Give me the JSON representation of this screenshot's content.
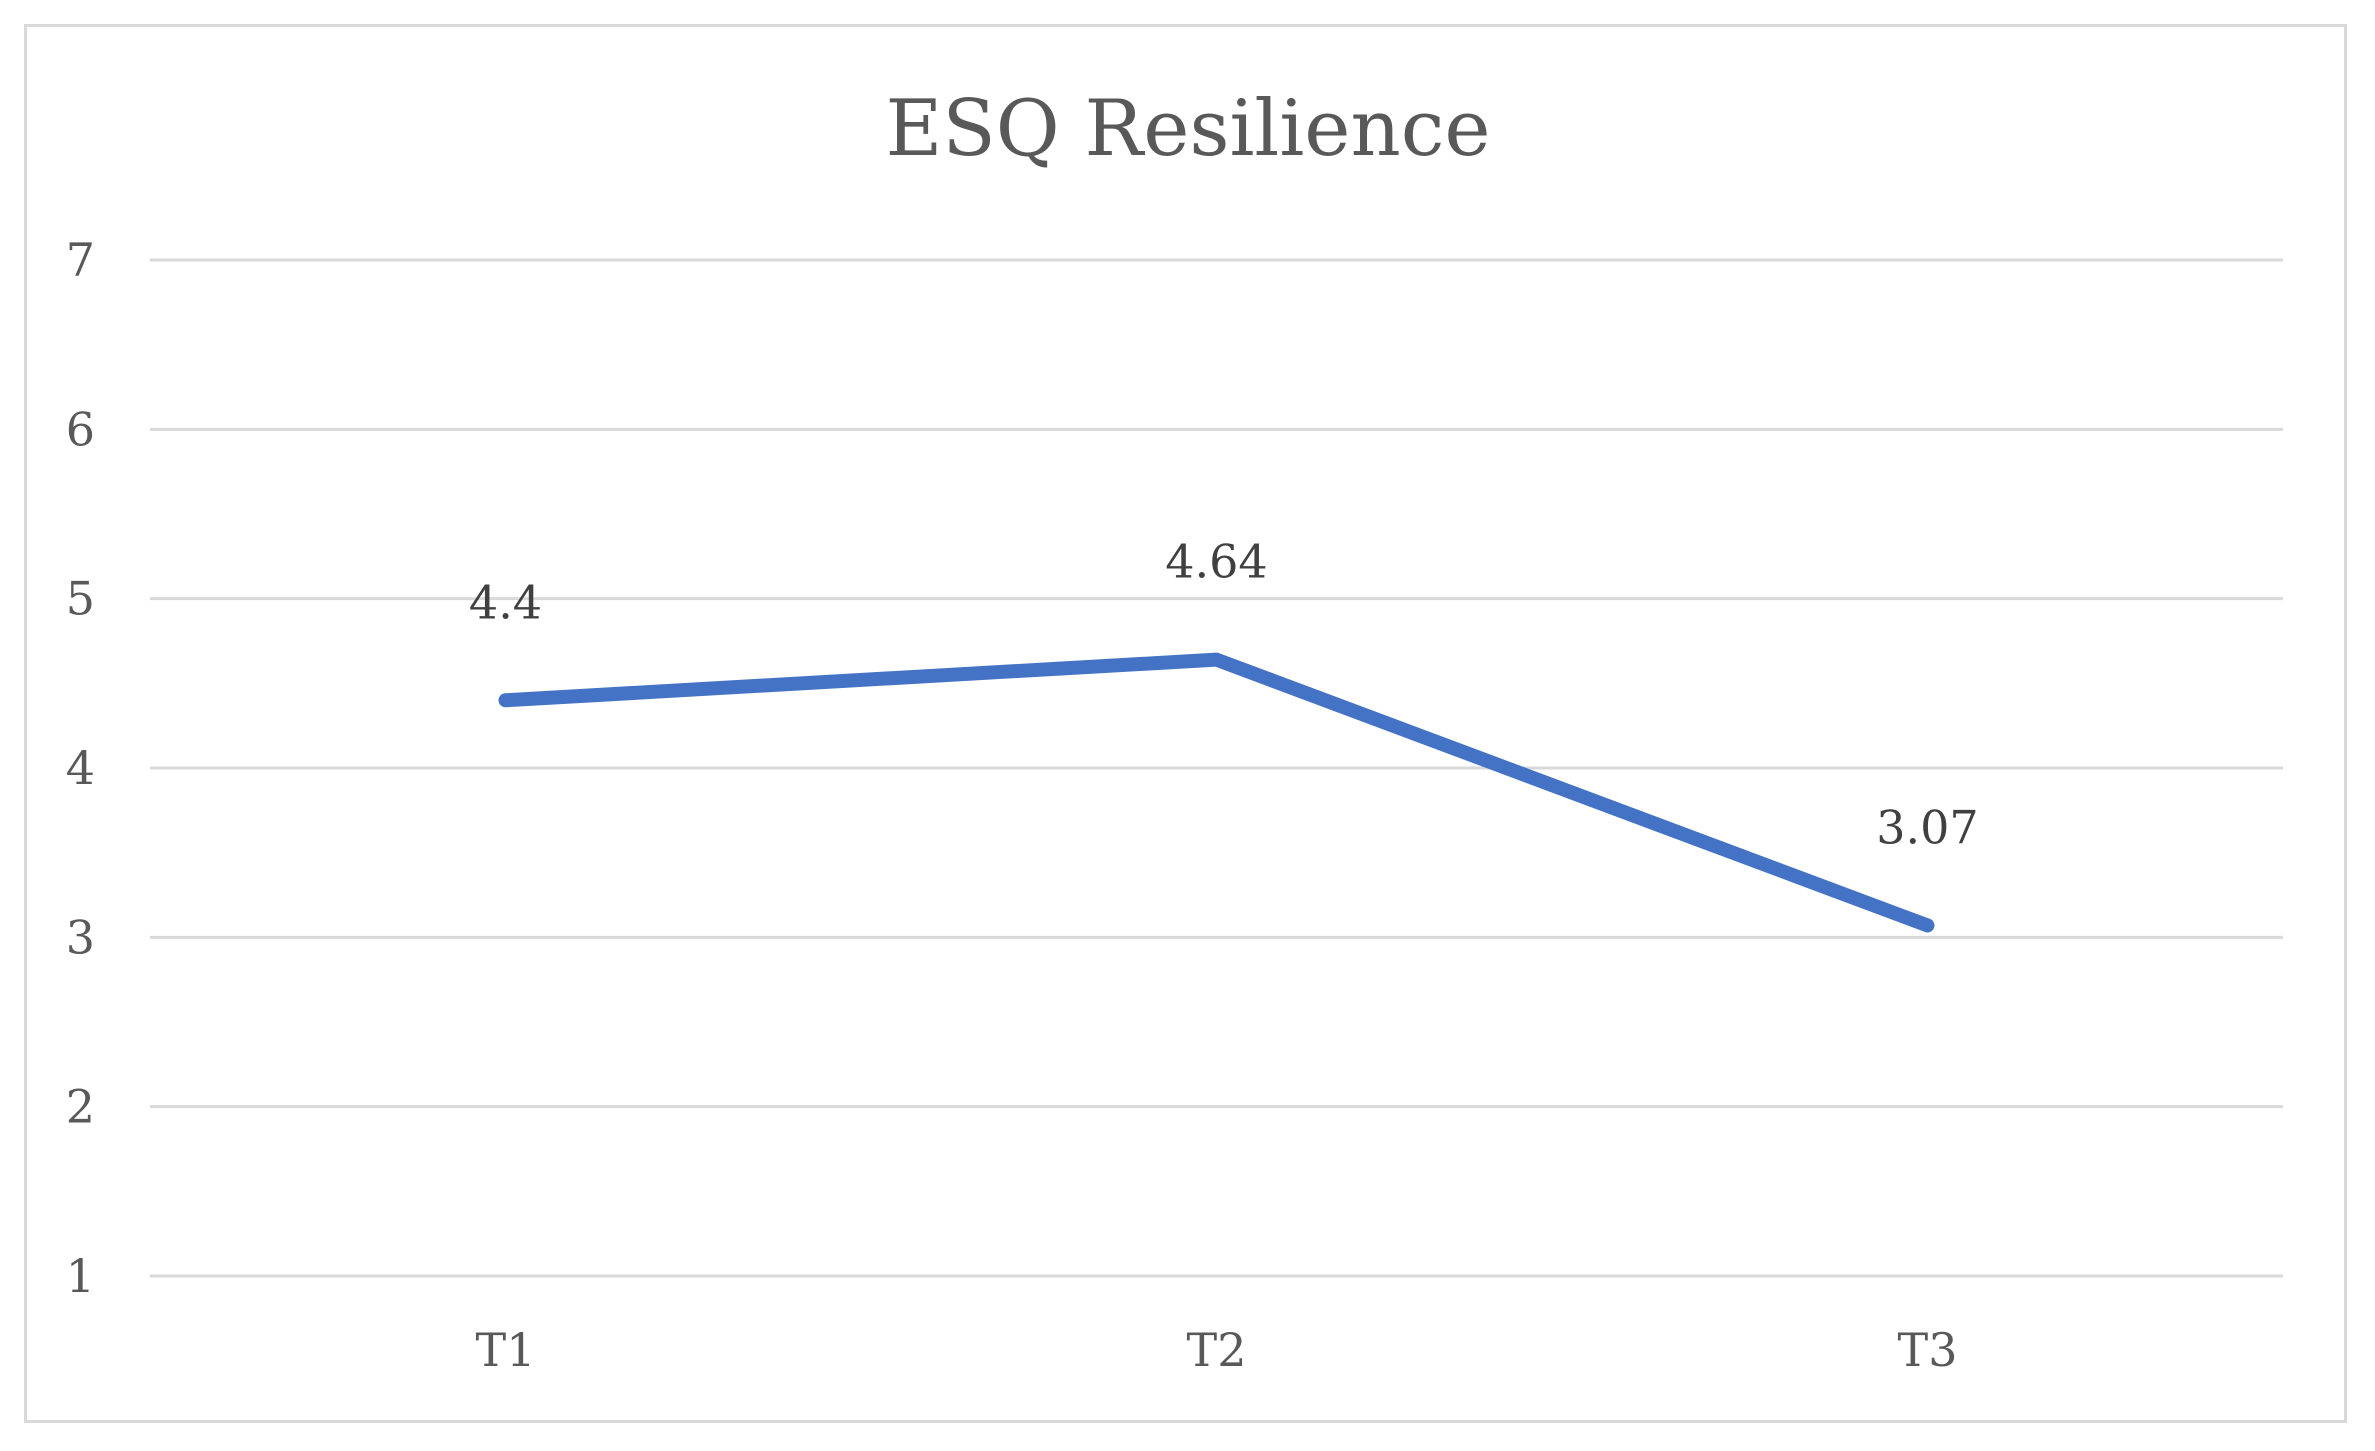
{
  "chart_data": {
    "type": "line",
    "title": "ESQ Resilience",
    "categories": [
      "T1",
      "T2",
      "T3"
    ],
    "series": [
      {
        "values": [
          4.4,
          4.64,
          3.07
        ],
        "data_labels": [
          "4.4",
          "4.64",
          "3.07"
        ]
      }
    ],
    "ylim": [
      1,
      7
    ],
    "yticks": [
      1,
      2,
      3,
      4,
      5,
      6,
      7
    ],
    "xlabel": "",
    "ylabel": "",
    "grid": "horizontal",
    "legend": "none",
    "colors": {
      "series": "#4472c4",
      "grid": "#d9d9d9",
      "text": "#595959",
      "frame": "#d9d9d9"
    }
  }
}
